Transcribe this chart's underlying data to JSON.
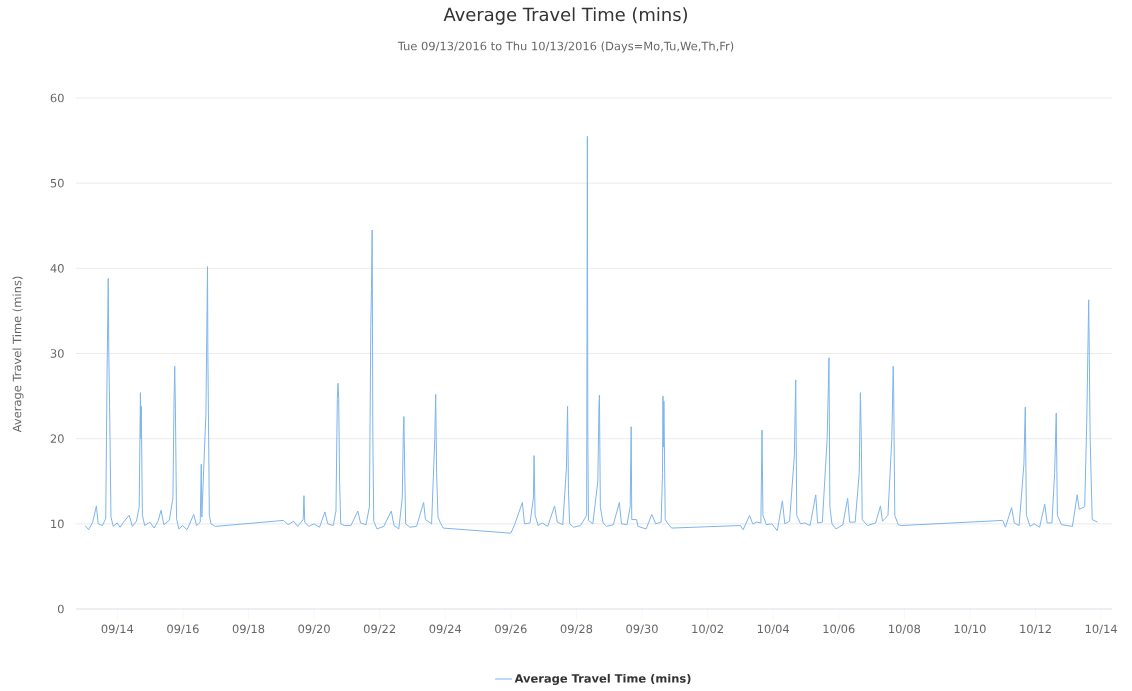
{
  "chart_data": {
    "type": "line",
    "title": "Average Travel Time (mins)",
    "subtitle": "Tue 09/13/2016 to Thu 10/13/2016 (Days=Mo,Tu,We,Th,Fr)",
    "ylabel": "Average Travel Time (mins)",
    "x": [
      "2016-09-13T00:30",
      "2016-09-13T03:00",
      "2016-09-13T06:00",
      "2016-09-13T08:40",
      "2016-09-13T10:00",
      "2016-09-13T13:00",
      "2016-09-13T15:30",
      "2016-09-13T16:30",
      "2016-09-13T17:20",
      "2016-09-13T17:45",
      "2016-09-13T18:30",
      "2016-09-13T19:20",
      "2016-09-13T21:00",
      "2016-09-13T23:50",
      "2016-09-14T02:00",
      "2016-09-14T05:00",
      "2016-09-14T08:40",
      "2016-09-14T11:00",
      "2016-09-14T14:00",
      "2016-09-14T16:00",
      "2016-09-14T16:54",
      "2016-09-14T17:10",
      "2016-09-14T17:30",
      "2016-09-14T18:20",
      "2016-09-14T20:00",
      "2016-09-14T23:50",
      "2016-09-15T03:00",
      "2016-09-15T06:00",
      "2016-09-15T08:00",
      "2016-09-15T10:00",
      "2016-09-15T14:00",
      "2016-09-15T16:40",
      "2016-09-15T17:30",
      "2016-09-15T18:00",
      "2016-09-15T18:30",
      "2016-09-15T19:20",
      "2016-09-15T21:00",
      "2016-09-15T23:50",
      "2016-09-16T03:00",
      "2016-09-16T07:55",
      "2016-09-16T10:00",
      "2016-09-16T12:40",
      "2016-09-16T13:25",
      "2016-09-16T13:50",
      "2016-09-16T16:50",
      "2016-09-16T18:00",
      "2016-09-16T18:15",
      "2016-09-16T19:20",
      "2016-09-16T20:30",
      "2016-09-16T23:50",
      "2016-09-19T01:40",
      "2016-09-19T05:00",
      "2016-09-19T09:00",
      "2016-09-19T12:00",
      "2016-09-19T16:00",
      "2016-09-19T16:35",
      "2016-09-19T17:10",
      "2016-09-19T20:00",
      "2016-09-19T23:50",
      "2016-09-20T04:00",
      "2016-09-20T07:55",
      "2016-09-20T10:00",
      "2016-09-20T14:00",
      "2016-09-20T16:00",
      "2016-09-20T17:00",
      "2016-09-20T17:30",
      "2016-09-20T18:00",
      "2016-09-20T18:40",
      "2016-09-20T19:30",
      "2016-09-20T22:00",
      "2016-09-21T03:00",
      "2016-09-21T08:00",
      "2016-09-21T10:00",
      "2016-09-21T14:00",
      "2016-09-21T16:30",
      "2016-09-21T17:30",
      "2016-09-21T18:00",
      "2016-09-21T18:30",
      "2016-09-21T19:00",
      "2016-09-21T19:40",
      "2016-09-21T22:00",
      "2016-09-22T03:00",
      "2016-09-22T08:30",
      "2016-09-22T10:30",
      "2016-09-22T14:00",
      "2016-09-22T16:30",
      "2016-09-22T17:20",
      "2016-09-22T17:45",
      "2016-09-22T18:15",
      "2016-09-22T19:00",
      "2016-09-22T22:00",
      "2016-09-23T03:00",
      "2016-09-23T08:10",
      "2016-09-23T09:30",
      "2016-09-23T14:00",
      "2016-09-23T16:20",
      "2016-09-23T17:00",
      "2016-09-23T17:40",
      "2016-09-23T18:40",
      "2016-09-23T20:30",
      "2016-09-23T22:30",
      "2016-09-26T00:00",
      "2016-09-26T03:00",
      "2016-09-26T08:25",
      "2016-09-26T10:00",
      "2016-09-26T14:00",
      "2016-09-26T16:30",
      "2016-09-26T17:00",
      "2016-09-26T17:45",
      "2016-09-26T20:00",
      "2016-09-26T23:00",
      "2016-09-27T03:00",
      "2016-09-27T08:00",
      "2016-09-27T10:00",
      "2016-09-27T14:00",
      "2016-09-27T16:40",
      "2016-09-27T17:30",
      "2016-09-27T18:10",
      "2016-09-27T19:00",
      "2016-09-27T22:00",
      "2016-09-28T03:00",
      "2016-09-28T07:30",
      "2016-09-28T08:00",
      "2016-09-28T08:20",
      "2016-09-28T08:50",
      "2016-09-28T12:00",
      "2016-09-28T15:40",
      "2016-09-28T16:30",
      "2016-09-28T16:50",
      "2016-09-28T17:30",
      "2016-09-28T19:30",
      "2016-09-28T22:00",
      "2016-09-29T03:00",
      "2016-09-29T07:25",
      "2016-09-29T09:00",
      "2016-09-29T13:00",
      "2016-09-29T15:20",
      "2016-09-29T16:05",
      "2016-09-29T16:30",
      "2016-09-29T20:00",
      "2016-09-29T21:00",
      "2016-09-30T03:00",
      "2016-09-30T07:10",
      "2016-09-30T10:00",
      "2016-09-30T14:00",
      "2016-09-30T15:00",
      "2016-09-30T15:20",
      "2016-09-30T15:40",
      "2016-09-30T16:00",
      "2016-09-30T17:00",
      "2016-09-30T19:00",
      "2016-09-30T21:40",
      "2016-10-03T00:00",
      "2016-10-03T02:00",
      "2016-10-03T06:45",
      "2016-10-03T09:00",
      "2016-10-03T12:00",
      "2016-10-03T15:00",
      "2016-10-03T15:50",
      "2016-10-03T16:30",
      "2016-10-03T19:00",
      "2016-10-03T23:00",
      "2016-10-04T03:00",
      "2016-10-04T06:45",
      "2016-10-04T08:30",
      "2016-10-04T12:00",
      "2016-10-04T15:30",
      "2016-10-04T16:30",
      "2016-10-04T17:15",
      "2016-10-04T20:00",
      "2016-10-04T23:00",
      "2016-10-05T03:00",
      "2016-10-05T07:10",
      "2016-10-05T08:30",
      "2016-10-05T12:00",
      "2016-10-05T15:30",
      "2016-10-05T16:50",
      "2016-10-05T17:30",
      "2016-10-05T19:00",
      "2016-10-05T22:00",
      "2016-10-06T03:00",
      "2016-10-06T06:30",
      "2016-10-06T08:00",
      "2016-10-06T12:00",
      "2016-10-06T15:00",
      "2016-10-06T15:50",
      "2016-10-06T16:30",
      "2016-10-06T17:10",
      "2016-10-06T21:00",
      "2016-10-07T03:00",
      "2016-10-07T06:30",
      "2016-10-07T08:00",
      "2016-10-07T12:00",
      "2016-10-07T14:50",
      "2016-10-07T15:50",
      "2016-10-07T16:10",
      "2016-10-07T17:00",
      "2016-10-07T19:30",
      "2016-10-07T21:40",
      "2016-10-11T00:00",
      "2016-10-11T02:00",
      "2016-10-11T06:30",
      "2016-10-11T08:30",
      "2016-10-11T12:00",
      "2016-10-11T15:30",
      "2016-10-11T16:30",
      "2016-10-11T17:20",
      "2016-10-11T20:00",
      "2016-10-11T23:00",
      "2016-10-12T03:00",
      "2016-10-12T06:45",
      "2016-10-12T08:30",
      "2016-10-12T12:00",
      "2016-10-12T14:00",
      "2016-10-12T15:10",
      "2016-10-12T16:00",
      "2016-10-12T19:00",
      "2016-10-12T23:00",
      "2016-10-13T03:00",
      "2016-10-13T06:30",
      "2016-10-13T08:00",
      "2016-10-13T12:00",
      "2016-10-13T13:30",
      "2016-10-13T14:55",
      "2016-10-13T15:05",
      "2016-10-13T16:00",
      "2016-10-13T17:30",
      "2016-10-13T21:20"
    ],
    "series": [
      {
        "name": "Average Travel Time (mins)",
        "color": "#7cb5ec",
        "values": [
          9.8,
          9.3,
          10.2,
          12.1,
          10.0,
          9.8,
          10.6,
          28.0,
          38.8,
          30.0,
          22.0,
          10.8,
          9.7,
          10.1,
          9.6,
          10.3,
          11.0,
          9.7,
          10.3,
          12.0,
          25.4,
          20.0,
          23.8,
          11.0,
          9.8,
          10.2,
          9.5,
          10.4,
          11.6,
          9.9,
          10.4,
          13.0,
          24.5,
          28.5,
          23.5,
          10.6,
          9.4,
          9.8,
          9.3,
          11.1,
          9.8,
          10.2,
          17.0,
          10.8,
          23.0,
          40.2,
          30.0,
          11.0,
          10.0,
          9.7,
          10.4,
          9.9,
          10.3,
          9.7,
          10.5,
          13.3,
          10.2,
          9.7,
          10.0,
          9.6,
          11.4,
          10.0,
          9.8,
          11.5,
          24.6,
          26.5,
          24.8,
          15.0,
          10.0,
          9.8,
          9.8,
          11.5,
          10.1,
          9.9,
          12.0,
          33.2,
          37.6,
          44.5,
          20.0,
          10.3,
          9.4,
          9.7,
          11.5,
          9.8,
          9.4,
          13.0,
          21.0,
          22.6,
          17.0,
          10.0,
          9.6,
          9.7,
          12.5,
          10.5,
          10.0,
          20.0,
          25.2,
          16.0,
          10.8,
          10.1,
          9.5,
          8.9,
          10.0,
          12.5,
          10.0,
          10.1,
          13.0,
          18.0,
          11.0,
          9.8,
          10.1,
          9.7,
          12.1,
          10.2,
          9.9,
          16.5,
          23.8,
          14.0,
          10.0,
          9.6,
          9.8,
          11.0,
          55.5,
          20.0,
          10.4,
          10.0,
          15.0,
          24.0,
          25.1,
          12.0,
          10.1,
          9.7,
          9.9,
          12.5,
          10.0,
          9.9,
          12.0,
          21.4,
          10.5,
          10.5,
          9.7,
          9.4,
          11.1,
          10.0,
          10.2,
          16.0,
          25.0,
          19.0,
          24.4,
          10.5,
          10.0,
          9.5,
          9.8,
          9.3,
          11.0,
          10.0,
          10.2,
          10.1,
          21.0,
          11.0,
          9.9,
          10.0,
          9.2,
          12.7,
          10.0,
          10.3,
          18.0,
          26.9,
          11.0,
          10.0,
          10.1,
          9.8,
          13.4,
          10.1,
          10.2,
          20.0,
          29.5,
          12.0,
          10.0,
          9.4,
          9.9,
          13.0,
          10.2,
          10.2,
          16.0,
          25.4,
          20.0,
          10.5,
          9.8,
          10.1,
          12.1,
          10.3,
          11.0,
          20.0,
          28.5,
          26.0,
          11.0,
          9.9,
          9.8,
          10.4,
          9.6,
          11.9,
          10.1,
          9.8,
          17.0,
          23.7,
          11.0,
          9.7,
          10.0,
          9.6,
          12.3,
          10.1,
          10.1,
          16.0,
          23.0,
          11.0,
          9.9,
          9.8,
          9.7,
          13.4,
          11.7,
          12.0,
          22.0,
          36.3,
          34.0,
          20.0,
          10.5,
          10.2
        ]
      }
    ],
    "xlim": [
      "2016-09-12T17:45",
      "2016-10-14T08:00"
    ],
    "ylim": [
      0,
      60
    ],
    "xticks": [
      {
        "value": "2016-09-14",
        "label": "09/14"
      },
      {
        "value": "2016-09-16",
        "label": "09/16"
      },
      {
        "value": "2016-09-18",
        "label": "09/18"
      },
      {
        "value": "2016-09-20",
        "label": "09/20"
      },
      {
        "value": "2016-09-22",
        "label": "09/22"
      },
      {
        "value": "2016-09-24",
        "label": "09/24"
      },
      {
        "value": "2016-09-26",
        "label": "09/26"
      },
      {
        "value": "2016-09-28",
        "label": "09/28"
      },
      {
        "value": "2016-09-30",
        "label": "09/30"
      },
      {
        "value": "2016-10-02",
        "label": "10/02"
      },
      {
        "value": "2016-10-04",
        "label": "10/04"
      },
      {
        "value": "2016-10-06",
        "label": "10/06"
      },
      {
        "value": "2016-10-08",
        "label": "10/08"
      },
      {
        "value": "2016-10-10",
        "label": "10/10"
      },
      {
        "value": "2016-10-12",
        "label": "10/12"
      },
      {
        "value": "2016-10-14",
        "label": "10/14"
      }
    ],
    "yticks": [
      0,
      10,
      20,
      30,
      40,
      50,
      60
    ],
    "grid": "y",
    "legend": "bottom",
    "marker": "none",
    "line_style": "solid"
  }
}
